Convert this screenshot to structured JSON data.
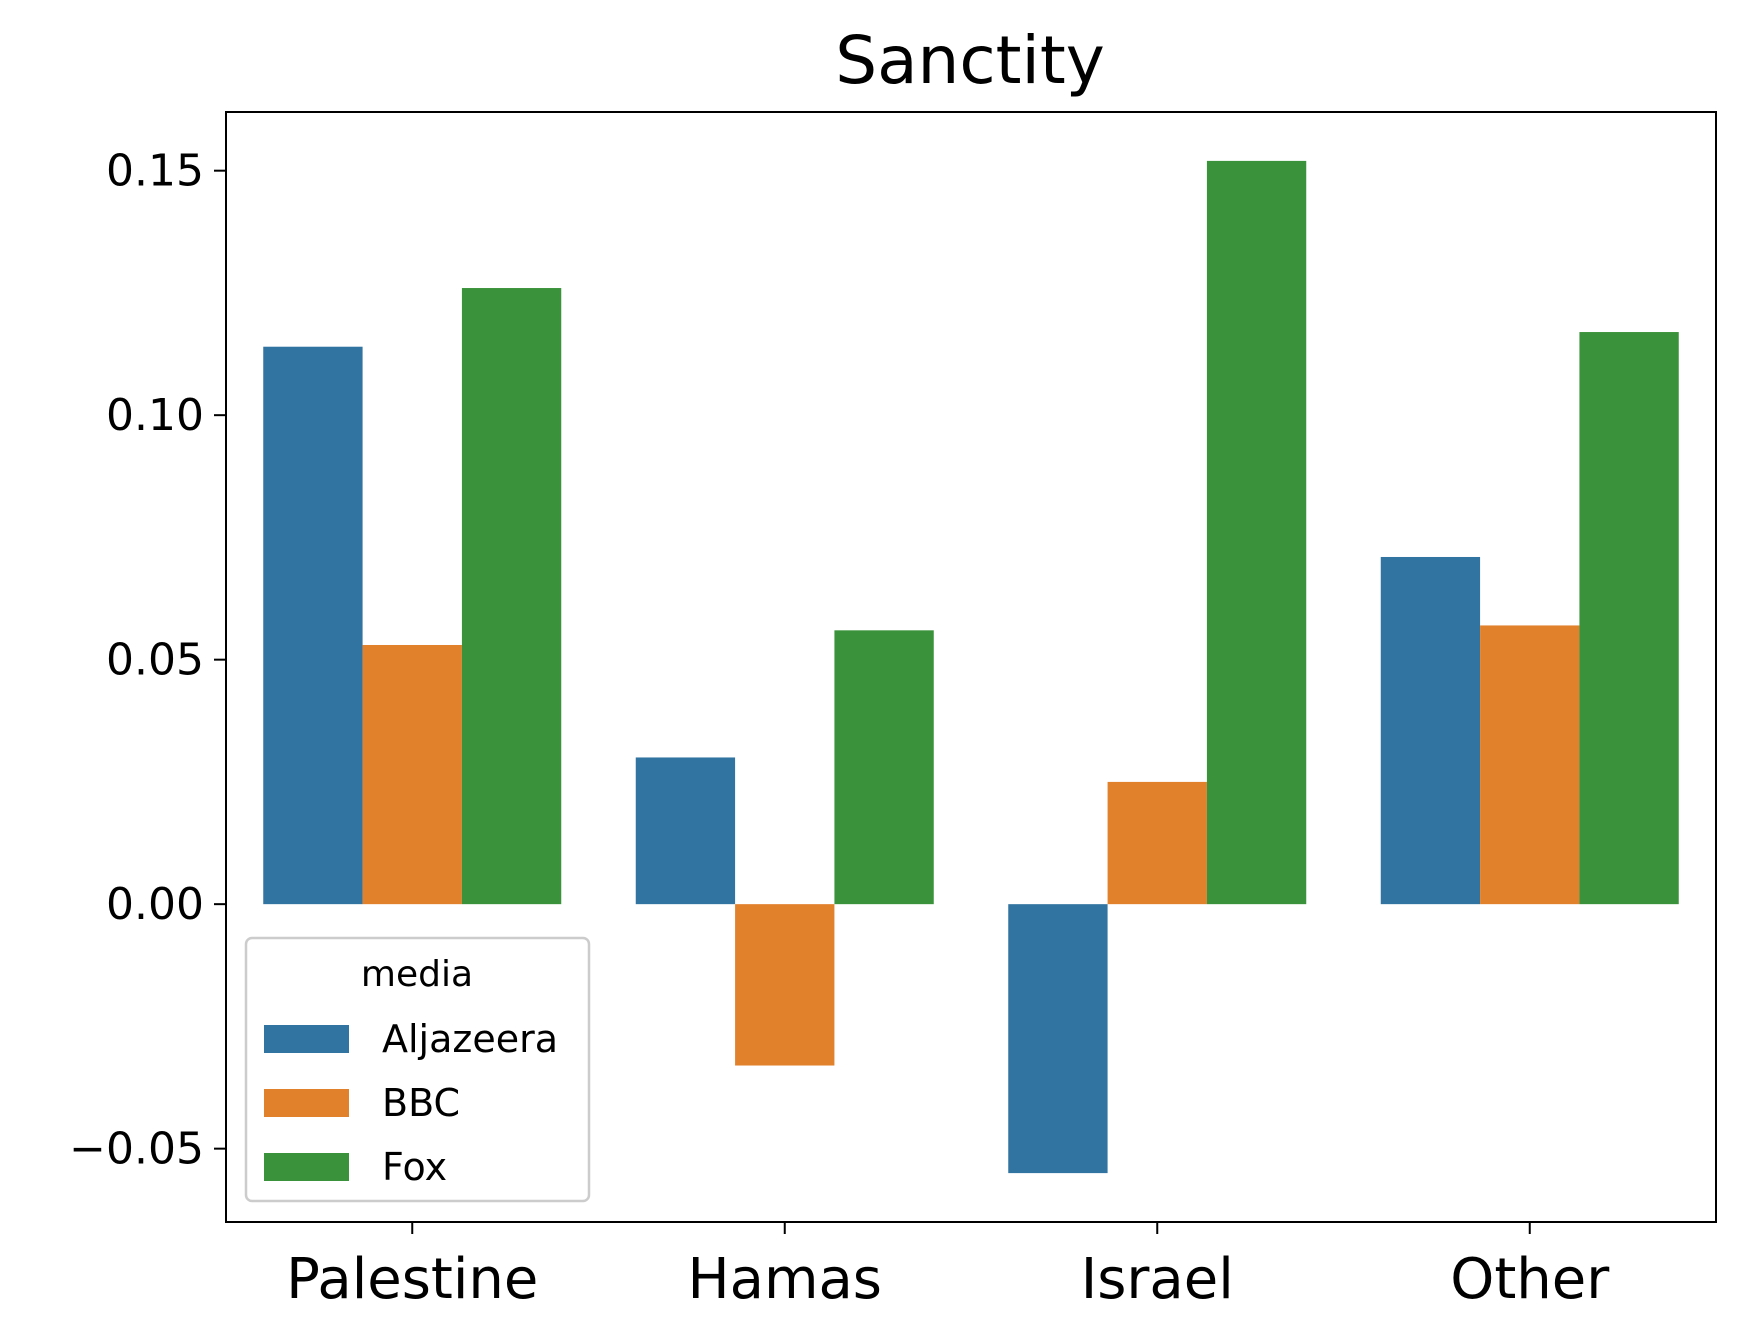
{
  "chart_data": {
    "type": "bar",
    "title": "Sanctity",
    "xlabel": "",
    "ylabel": "",
    "categories": [
      "Palestine",
      "Hamas",
      "Israel",
      "Other"
    ],
    "series": [
      {
        "name": "Aljazeera",
        "color": "#3274a1",
        "values": [
          0.114,
          0.03,
          -0.055,
          0.071
        ]
      },
      {
        "name": "BBC",
        "color": "#e1812c",
        "values": [
          0.053,
          -0.033,
          0.025,
          0.057
        ]
      },
      {
        "name": "Fox",
        "color": "#3a923a",
        "values": [
          0.126,
          0.056,
          0.152,
          0.117
        ]
      }
    ],
    "ylim": [
      -0.065,
      0.162
    ],
    "yticks": [
      -0.05,
      0.0,
      0.05,
      0.1,
      0.15
    ],
    "ytick_labels": [
      "−0.05",
      "0.00",
      "0.05",
      "0.10",
      "0.15"
    ],
    "grid": false,
    "legend": {
      "title": "media",
      "placement": "lower-left"
    }
  }
}
